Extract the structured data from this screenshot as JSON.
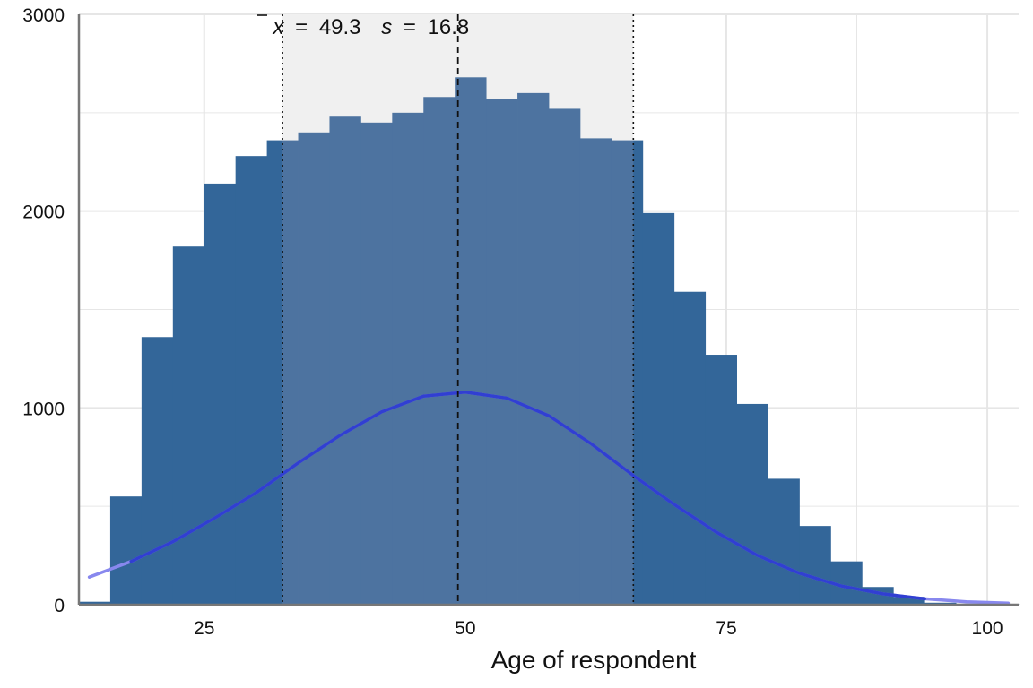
{
  "chart_data": {
    "type": "bar",
    "xlabel": "Age of respondent",
    "ylabel": "",
    "xlim": [
      13,
      103
    ],
    "ylim": [
      0,
      3000
    ],
    "x_ticks": [
      25,
      50,
      75,
      100
    ],
    "y_ticks": [
      0,
      1000,
      2000,
      3000
    ],
    "grid": true,
    "bin_width": 3,
    "bin_starts": [
      13,
      16,
      19,
      22,
      25,
      28,
      31,
      34,
      37,
      40,
      43,
      46,
      49,
      52,
      55,
      58,
      61,
      64,
      67,
      70,
      73,
      76,
      79,
      82,
      85,
      88,
      91,
      94,
      97,
      100
    ],
    "values": [
      15,
      550,
      1360,
      1820,
      2140,
      2280,
      2360,
      2400,
      2480,
      2450,
      2500,
      2580,
      2680,
      2570,
      2600,
      2520,
      2370,
      2360,
      1990,
      1590,
      1270,
      1020,
      640,
      400,
      220,
      90,
      40,
      10,
      5,
      2
    ],
    "mean": 49.3,
    "sd": 16.8,
    "stat_text": {
      "mean_symbol": "x",
      "mean_value": "49.3",
      "sd_symbol": "s",
      "sd_value": "16.8",
      "equals": "="
    },
    "normal_curve": {
      "x": [
        14,
        18,
        22,
        26,
        30,
        34,
        38,
        42,
        46,
        50,
        54,
        58,
        62,
        66,
        70,
        74,
        78,
        82,
        86,
        90,
        94,
        98,
        102
      ],
      "y": [
        140,
        220,
        320,
        440,
        570,
        720,
        860,
        980,
        1060,
        1080,
        1050,
        960,
        820,
        660,
        510,
        370,
        250,
        160,
        95,
        55,
        30,
        15,
        8
      ]
    },
    "colors": {
      "bar": "#336699",
      "bar_highlight": "#4d73a0",
      "band": "#f0f0f0",
      "curve": "#2233cc",
      "curve_tail": "#8888ee",
      "grid": "#e6e6e6",
      "axis": "#777777"
    }
  }
}
